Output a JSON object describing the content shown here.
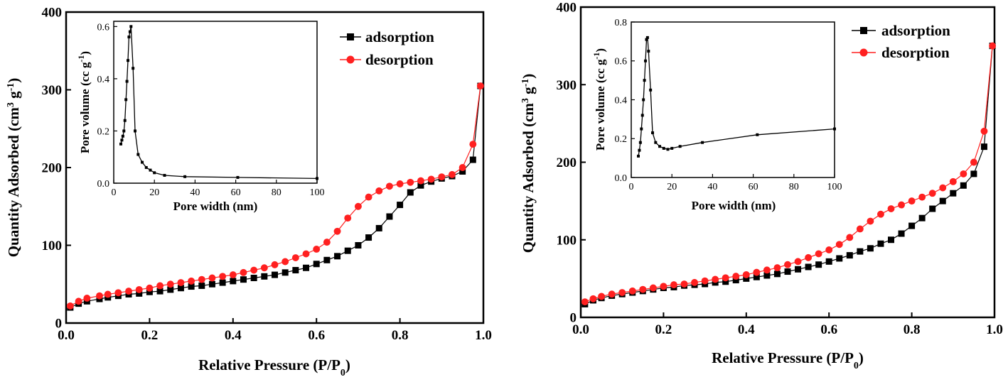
{
  "chart_data": [
    {
      "type": "line",
      "xlabel": "Relative Pressure (P/P",
      "xlabel_sub": "0",
      "xlabel_tail": ")",
      "ylabel": "Quantity Adsorbed (cm",
      "ylabel_sup1": "3",
      "ylabel_mid": " g",
      "ylabel_sup2": "-1",
      "ylabel_tail": ")",
      "xlim": [
        0,
        1.0
      ],
      "ylim": [
        0,
        400
      ],
      "xticks": [
        "0.0",
        "0.2",
        "0.4",
        "0.6",
        "0.8",
        "1.0"
      ],
      "yticks": [
        "0",
        "100",
        "200",
        "300",
        "400"
      ],
      "legend_position": "top-right",
      "series": [
        {
          "name": "adsorption",
          "color": "#000000",
          "marker": "square",
          "x": [
            0.01,
            0.03,
            0.05,
            0.08,
            0.1,
            0.125,
            0.15,
            0.175,
            0.2,
            0.225,
            0.25,
            0.275,
            0.3,
            0.325,
            0.35,
            0.375,
            0.4,
            0.425,
            0.45,
            0.475,
            0.5,
            0.525,
            0.55,
            0.575,
            0.6,
            0.625,
            0.65,
            0.675,
            0.7,
            0.725,
            0.75,
            0.775,
            0.8,
            0.825,
            0.85,
            0.875,
            0.9,
            0.925,
            0.95,
            0.975,
            0.993
          ],
          "y": [
            20,
            25,
            28,
            31,
            33,
            35,
            37,
            38,
            40,
            41,
            43,
            45,
            47,
            48,
            50,
            52,
            54,
            56,
            58,
            60,
            62,
            65,
            68,
            71,
            76,
            81,
            86,
            93,
            100,
            110,
            122,
            137,
            152,
            168,
            177,
            182,
            186,
            189,
            195,
            210,
            305
          ]
        },
        {
          "name": "desorption",
          "color": "#ff2020",
          "marker": "circle",
          "x": [
            0.993,
            0.975,
            0.95,
            0.925,
            0.9,
            0.875,
            0.85,
            0.825,
            0.8,
            0.775,
            0.75,
            0.725,
            0.7,
            0.675,
            0.65,
            0.625,
            0.6,
            0.575,
            0.55,
            0.525,
            0.5,
            0.475,
            0.45,
            0.425,
            0.4,
            0.375,
            0.35,
            0.325,
            0.3,
            0.275,
            0.25,
            0.225,
            0.2,
            0.175,
            0.15,
            0.125,
            0.1,
            0.08,
            0.05,
            0.03,
            0.01
          ],
          "y": [
            305,
            230,
            200,
            191,
            188,
            185,
            183,
            181,
            179,
            176,
            170,
            162,
            150,
            135,
            118,
            104,
            95,
            89,
            84,
            79,
            75,
            71,
            68,
            65,
            62,
            60,
            58,
            56,
            54,
            52,
            50,
            48,
            45,
            43,
            41,
            39,
            37,
            35,
            32,
            28,
            22
          ]
        }
      ],
      "inset": {
        "type": "line",
        "xlabel": "Pore width (nm)",
        "ylabel": "Pore volume (cc g",
        "ylabel_sup": "-1",
        "ylabel_tail": ")",
        "xlim": [
          0,
          100
        ],
        "ylim": [
          0,
          0.62
        ],
        "xticks": [
          "0",
          "20",
          "40",
          "60",
          "80",
          "100"
        ],
        "yticks": [
          "0.0",
          "0.2",
          "0.4",
          "0.6"
        ],
        "series": [
          {
            "color": "#000000",
            "marker": "square",
            "x": [
              3.5,
              4,
              4.5,
              5,
              5.5,
              6,
              6.5,
              7,
              7.5,
              8,
              8.5,
              9.5,
              10.5,
              12,
              14,
              16,
              18,
              20,
              25,
              35,
              61,
              100
            ],
            "y": [
              0.15,
              0.165,
              0.18,
              0.2,
              0.24,
              0.32,
              0.39,
              0.47,
              0.56,
              0.58,
              0.6,
              0.44,
              0.2,
              0.11,
              0.08,
              0.06,
              0.05,
              0.04,
              0.03,
              0.025,
              0.022,
              0.018
            ]
          }
        ]
      }
    },
    {
      "type": "line",
      "xlabel": "Relative Pressure (P/P",
      "xlabel_sub": "0",
      "xlabel_tail": ")",
      "ylabel": "Quantity Adsorbed (cm",
      "ylabel_sup1": "3",
      "ylabel_mid": " g",
      "ylabel_sup2": "-1",
      "ylabel_tail": ")",
      "xlim": [
        0,
        1.0
      ],
      "ylim": [
        0,
        400
      ],
      "xticks": [
        "0.0",
        "0.2",
        "0.4",
        "0.6",
        "0.8",
        "1.0"
      ],
      "yticks": [
        "0",
        "100",
        "200",
        "300",
        "400"
      ],
      "legend_position": "top-right",
      "series": [
        {
          "name": "adsorption",
          "color": "#000000",
          "marker": "square",
          "x": [
            0.01,
            0.03,
            0.05,
            0.075,
            0.1,
            0.125,
            0.15,
            0.175,
            0.2,
            0.225,
            0.25,
            0.275,
            0.3,
            0.325,
            0.35,
            0.375,
            0.4,
            0.425,
            0.45,
            0.475,
            0.5,
            0.525,
            0.55,
            0.575,
            0.6,
            0.625,
            0.65,
            0.675,
            0.7,
            0.725,
            0.75,
            0.775,
            0.8,
            0.825,
            0.85,
            0.875,
            0.9,
            0.925,
            0.95,
            0.975,
            0.995
          ],
          "y": [
            17,
            22,
            25,
            28,
            30,
            32,
            34,
            36,
            38,
            39,
            41,
            42,
            43,
            45,
            46,
            48,
            50,
            52,
            54,
            56,
            59,
            62,
            65,
            68,
            72,
            76,
            80,
            85,
            89,
            95,
            100,
            108,
            118,
            128,
            140,
            150,
            160,
            170,
            185,
            220,
            350
          ]
        },
        {
          "name": "desorption",
          "color": "#ff2020",
          "marker": "circle",
          "x": [
            0.995,
            0.975,
            0.95,
            0.925,
            0.9,
            0.875,
            0.85,
            0.825,
            0.8,
            0.775,
            0.75,
            0.725,
            0.7,
            0.675,
            0.65,
            0.625,
            0.6,
            0.575,
            0.55,
            0.525,
            0.5,
            0.475,
            0.45,
            0.425,
            0.4,
            0.375,
            0.35,
            0.325,
            0.3,
            0.275,
            0.25,
            0.225,
            0.2,
            0.175,
            0.15,
            0.125,
            0.1,
            0.075,
            0.05,
            0.03,
            0.01
          ],
          "y": [
            350,
            240,
            200,
            185,
            175,
            167,
            160,
            155,
            150,
            145,
            140,
            133,
            124,
            114,
            103,
            94,
            87,
            82,
            77,
            72,
            68,
            64,
            61,
            58,
            55,
            53,
            51,
            49,
            47,
            45,
            43,
            42,
            40,
            38,
            36,
            34,
            32,
            30,
            27,
            24,
            20
          ]
        }
      ],
      "inset": {
        "type": "line",
        "xlabel": "Pore width (nm)",
        "ylabel": "Pore volume (cc g",
        "ylabel_sup": "-1",
        "ylabel_tail": ")",
        "xlim": [
          0,
          100
        ],
        "ylim": [
          0,
          0.8
        ],
        "xticks": [
          "0",
          "20",
          "40",
          "60",
          "80",
          "100"
        ],
        "yticks": [
          "0.0",
          "0.2",
          "0.4",
          "0.6",
          "0.8"
        ],
        "series": [
          {
            "color": "#000000",
            "marker": "square",
            "x": [
              3.5,
              4,
              4.5,
              5,
              5.5,
              6,
              6.5,
              7,
              7.5,
              8,
              8.5,
              9.5,
              10.5,
              12,
              14,
              16,
              18,
              20,
              24,
              35,
              62,
              100
            ],
            "y": [
              0.11,
              0.14,
              0.18,
              0.25,
              0.32,
              0.4,
              0.5,
              0.6,
              0.71,
              0.72,
              0.65,
              0.45,
              0.23,
              0.18,
              0.16,
              0.15,
              0.145,
              0.15,
              0.16,
              0.18,
              0.22,
              0.25
            ]
          }
        ]
      }
    }
  ]
}
